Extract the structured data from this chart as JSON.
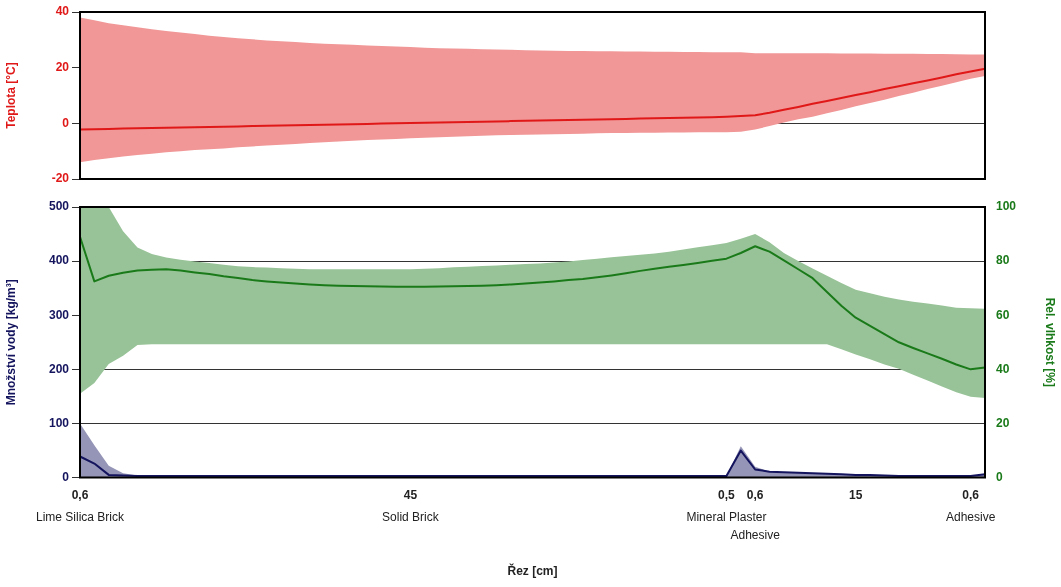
{
  "chart_data": [
    {
      "type": "line",
      "ylabel": "Teplota [°C]",
      "ylim": [
        -20,
        40
      ],
      "yticks": [
        -20,
        0,
        20,
        40
      ],
      "grid": "y",
      "tick_labels": "y",
      "categories": [
        null,
        null,
        null,
        null,
        null,
        null,
        null,
        null,
        null,
        null,
        null,
        null,
        null,
        null,
        null,
        null,
        null,
        null,
        null,
        null,
        null,
        null,
        null,
        null,
        null,
        null,
        null,
        null,
        null,
        null,
        null,
        null,
        null,
        null,
        null,
        null,
        null,
        null,
        null,
        null,
        null,
        null,
        null,
        null,
        null,
        null,
        null,
        null,
        null,
        null,
        null,
        null,
        null,
        null,
        null,
        null,
        null,
        null,
        null,
        null,
        null,
        null,
        null,
        null
      ],
      "series": [
        {
          "color": "#e01818",
          "values": [
            -2.2,
            -2.1,
            -2,
            -1.9,
            -1.8,
            -1.7,
            -1.6,
            -1.5,
            -1.4,
            -1.3,
            -1.2,
            -1.1,
            -1,
            -0.9,
            -0.8,
            -0.7,
            -0.6,
            -0.5,
            -0.4,
            -0.3,
            -0.2,
            -0.1,
            0,
            0.1,
            0.2,
            0.3,
            0.4,
            0.5,
            0.6,
            0.7,
            0.8,
            0.9,
            1,
            1.1,
            1.2,
            1.3,
            1.4,
            1.5,
            1.6,
            1.7,
            1.8,
            1.9,
            2,
            2.1,
            2.2,
            2.4,
            2.6,
            2.9,
            3.8,
            4.9,
            5.9,
            7,
            8,
            9.1,
            10.2,
            11.2,
            12.3,
            13.3,
            14.4,
            15.4,
            16.5,
            17.6,
            18.6,
            19.6
          ],
          "upper": [
            38,
            37,
            36,
            35.2,
            34.5,
            33.8,
            33.2,
            32.6,
            32.1,
            31.5,
            31,
            30.6,
            30.2,
            29.8,
            29.5,
            29.2,
            28.9,
            28.6,
            28.4,
            28.2,
            28,
            27.8,
            27.6,
            27.4,
            27.2,
            27,
            26.9,
            26.8,
            26.6,
            26.5,
            26.4,
            26.3,
            26.2,
            26.1,
            26,
            26,
            25.9,
            25.9,
            25.8,
            25.8,
            25.7,
            25.7,
            25.6,
            25.6,
            25.5,
            25.5,
            25.5,
            25.2,
            25.2,
            25.2,
            25.2,
            25.2,
            25.2,
            25.1,
            25.1,
            25.1,
            25,
            25,
            25,
            24.9,
            24.9,
            24.8,
            24.7,
            24.7
          ],
          "lower": [
            -14,
            -13.2,
            -12.5,
            -11.9,
            -11.4,
            -10.9,
            -10.4,
            -10,
            -9.6,
            -9.3,
            -9,
            -8.6,
            -8.3,
            -8,
            -7.7,
            -7.4,
            -7.1,
            -6.8,
            -6.5,
            -6.3,
            -6,
            -5.8,
            -5.6,
            -5.4,
            -5.2,
            -5,
            -4.8,
            -4.6,
            -4.5,
            -4.3,
            -4.2,
            -4.1,
            -4,
            -3.9,
            -3.8,
            -3.7,
            -3.6,
            -3.5,
            -3.5,
            -3.4,
            -3.4,
            -3.3,
            -3.3,
            -3.2,
            -3.2,
            -3.2,
            -3,
            -2.2,
            -1,
            0.3,
            1.5,
            2.4,
            3.6,
            4.8,
            6.1,
            7.3,
            8.5,
            9.8,
            11,
            12.3,
            13.5,
            14.8,
            16,
            17
          ]
        }
      ]
    },
    {
      "type": "line",
      "xlabel": "Řez [cm]",
      "ylabel": "Množství vody [kg/m³]",
      "y2label": "Rel. vlhkost [%]",
      "categories": [
        "0,6",
        null,
        null,
        null,
        null,
        null,
        null,
        null,
        null,
        null,
        null,
        null,
        null,
        null,
        null,
        null,
        null,
        null,
        null,
        null,
        null,
        null,
        null,
        "45",
        null,
        null,
        null,
        null,
        null,
        null,
        null,
        null,
        null,
        null,
        null,
        null,
        null,
        null,
        null,
        null,
        null,
        null,
        null,
        null,
        null,
        "0,5",
        null,
        "0,6",
        null,
        null,
        null,
        null,
        null,
        null,
        "15",
        null,
        null,
        null,
        null,
        null,
        null,
        null,
        "0,6",
        null
      ],
      "annotations": [
        "Lime Silica Brick",
        "Solid Brick",
        "Mineral Plaster",
        "Adhesive",
        null,
        "Adhesive"
      ],
      "ylim": [
        0,
        500
      ],
      "yticks": [
        0,
        100,
        200,
        300,
        400,
        500
      ],
      "y2lim": [
        0,
        100
      ],
      "y2ticks": [
        0,
        20,
        40,
        60,
        80,
        100
      ],
      "grid": "y",
      "series": [
        {
          "color": "#14145e",
          "axis": "y",
          "values": [
            39,
            26,
            5,
            4,
            3,
            3,
            3,
            3,
            3,
            3,
            3,
            3,
            3,
            3,
            3,
            3,
            3,
            3,
            3,
            3,
            3,
            3,
            3,
            3,
            3,
            3,
            3,
            3,
            3,
            3,
            3,
            3,
            3,
            3,
            3,
            3,
            3,
            3,
            3,
            3,
            3,
            3,
            3,
            3,
            3,
            3,
            50,
            15,
            11,
            10,
            9,
            8,
            7,
            6,
            5,
            5,
            4,
            3,
            3,
            3,
            3,
            3,
            3,
            6
          ],
          "upper": [
            100,
            60,
            22,
            8,
            4,
            3,
            3,
            3,
            3,
            3,
            3,
            3,
            3,
            3,
            3,
            3,
            3,
            3,
            3,
            3,
            3,
            3,
            3,
            3,
            3,
            3,
            3,
            3,
            3,
            3,
            3,
            3,
            3,
            3,
            3,
            3,
            3,
            3,
            3,
            3,
            3,
            3,
            3,
            3,
            3,
            3,
            58,
            20,
            11,
            10,
            9,
            8,
            7,
            6,
            5,
            5,
            4,
            3,
            3,
            3,
            3,
            3,
            3,
            6
          ],
          "lower": [
            0,
            0,
            0,
            0,
            0,
            0,
            0,
            0,
            0,
            0,
            0,
            0,
            0,
            0,
            0,
            0,
            0,
            0,
            0,
            0,
            0,
            0,
            0,
            0,
            0,
            0,
            0,
            0,
            0,
            0,
            0,
            0,
            0,
            0,
            0,
            0,
            0,
            0,
            0,
            0,
            0,
            0,
            0,
            0,
            0,
            0,
            0,
            0,
            0,
            0,
            0,
            0,
            0,
            0,
            0,
            0,
            0,
            0,
            0,
            0,
            0,
            0,
            0,
            0
          ]
        },
        {
          "color": "#1a7a1a",
          "axis": "y2",
          "values": [
            89,
            72.5,
            74.6,
            75.7,
            76.5,
            76.8,
            77,
            76.5,
            75.8,
            75.2,
            74.4,
            73.8,
            73,
            72.5,
            72.1,
            71.7,
            71.4,
            71.1,
            70.9,
            70.8,
            70.7,
            70.6,
            70.5,
            70.5,
            70.5,
            70.6,
            70.7,
            70.8,
            70.9,
            71.1,
            71.4,
            71.7,
            72.1,
            72.5,
            73,
            73.4,
            74,
            74.7,
            75.5,
            76.4,
            77.2,
            77.9,
            78.6,
            79.3,
            80.1,
            80.9,
            83,
            85.5,
            83.5,
            80.3,
            77,
            73.7,
            68.6,
            63.5,
            59.1,
            56.1,
            53,
            50,
            47.9,
            45.9,
            43.9,
            41.8,
            40,
            40.7
          ],
          "upper": [
            100,
            100,
            100,
            91,
            85,
            82.6,
            81.3,
            80.5,
            79.9,
            79.3,
            78.7,
            78.1,
            77.8,
            77.6,
            77.4,
            77.2,
            77,
            77,
            77,
            77,
            77,
            77,
            77,
            77,
            77.2,
            77.4,
            77.7,
            77.9,
            78.2,
            78.4,
            78.7,
            78.9,
            79.1,
            79.5,
            79.9,
            80.4,
            80.9,
            81.4,
            81.9,
            82.4,
            82.8,
            83.5,
            84.3,
            85.1,
            85.9,
            86.7,
            88.3,
            90,
            87,
            83,
            80,
            77.3,
            74.6,
            71.9,
            69.4,
            68.1,
            66.8,
            65.8,
            65,
            64.3,
            63.6,
            62.8,
            62.6,
            62.4
          ],
          "lower": [
            31,
            35,
            42,
            45,
            49,
            49.3,
            49.3,
            49.3,
            49.3,
            49.3,
            49.3,
            49.3,
            49.3,
            49.3,
            49.3,
            49.3,
            49.3,
            49.3,
            49.3,
            49.3,
            49.3,
            49.3,
            49.3,
            49.3,
            49.3,
            49.3,
            49.3,
            49.3,
            49.3,
            49.3,
            49.3,
            49.3,
            49.3,
            49.3,
            49.3,
            49.3,
            49.3,
            49.3,
            49.3,
            49.3,
            49.3,
            49.3,
            49.3,
            49.3,
            49.3,
            49.3,
            49.3,
            49.3,
            49.3,
            49.3,
            49.3,
            49.3,
            49.3,
            47.4,
            45.5,
            43.7,
            41.8,
            40.2,
            38,
            35.9,
            33.7,
            31.5,
            29.9,
            29.4
          ]
        }
      ]
    }
  ]
}
